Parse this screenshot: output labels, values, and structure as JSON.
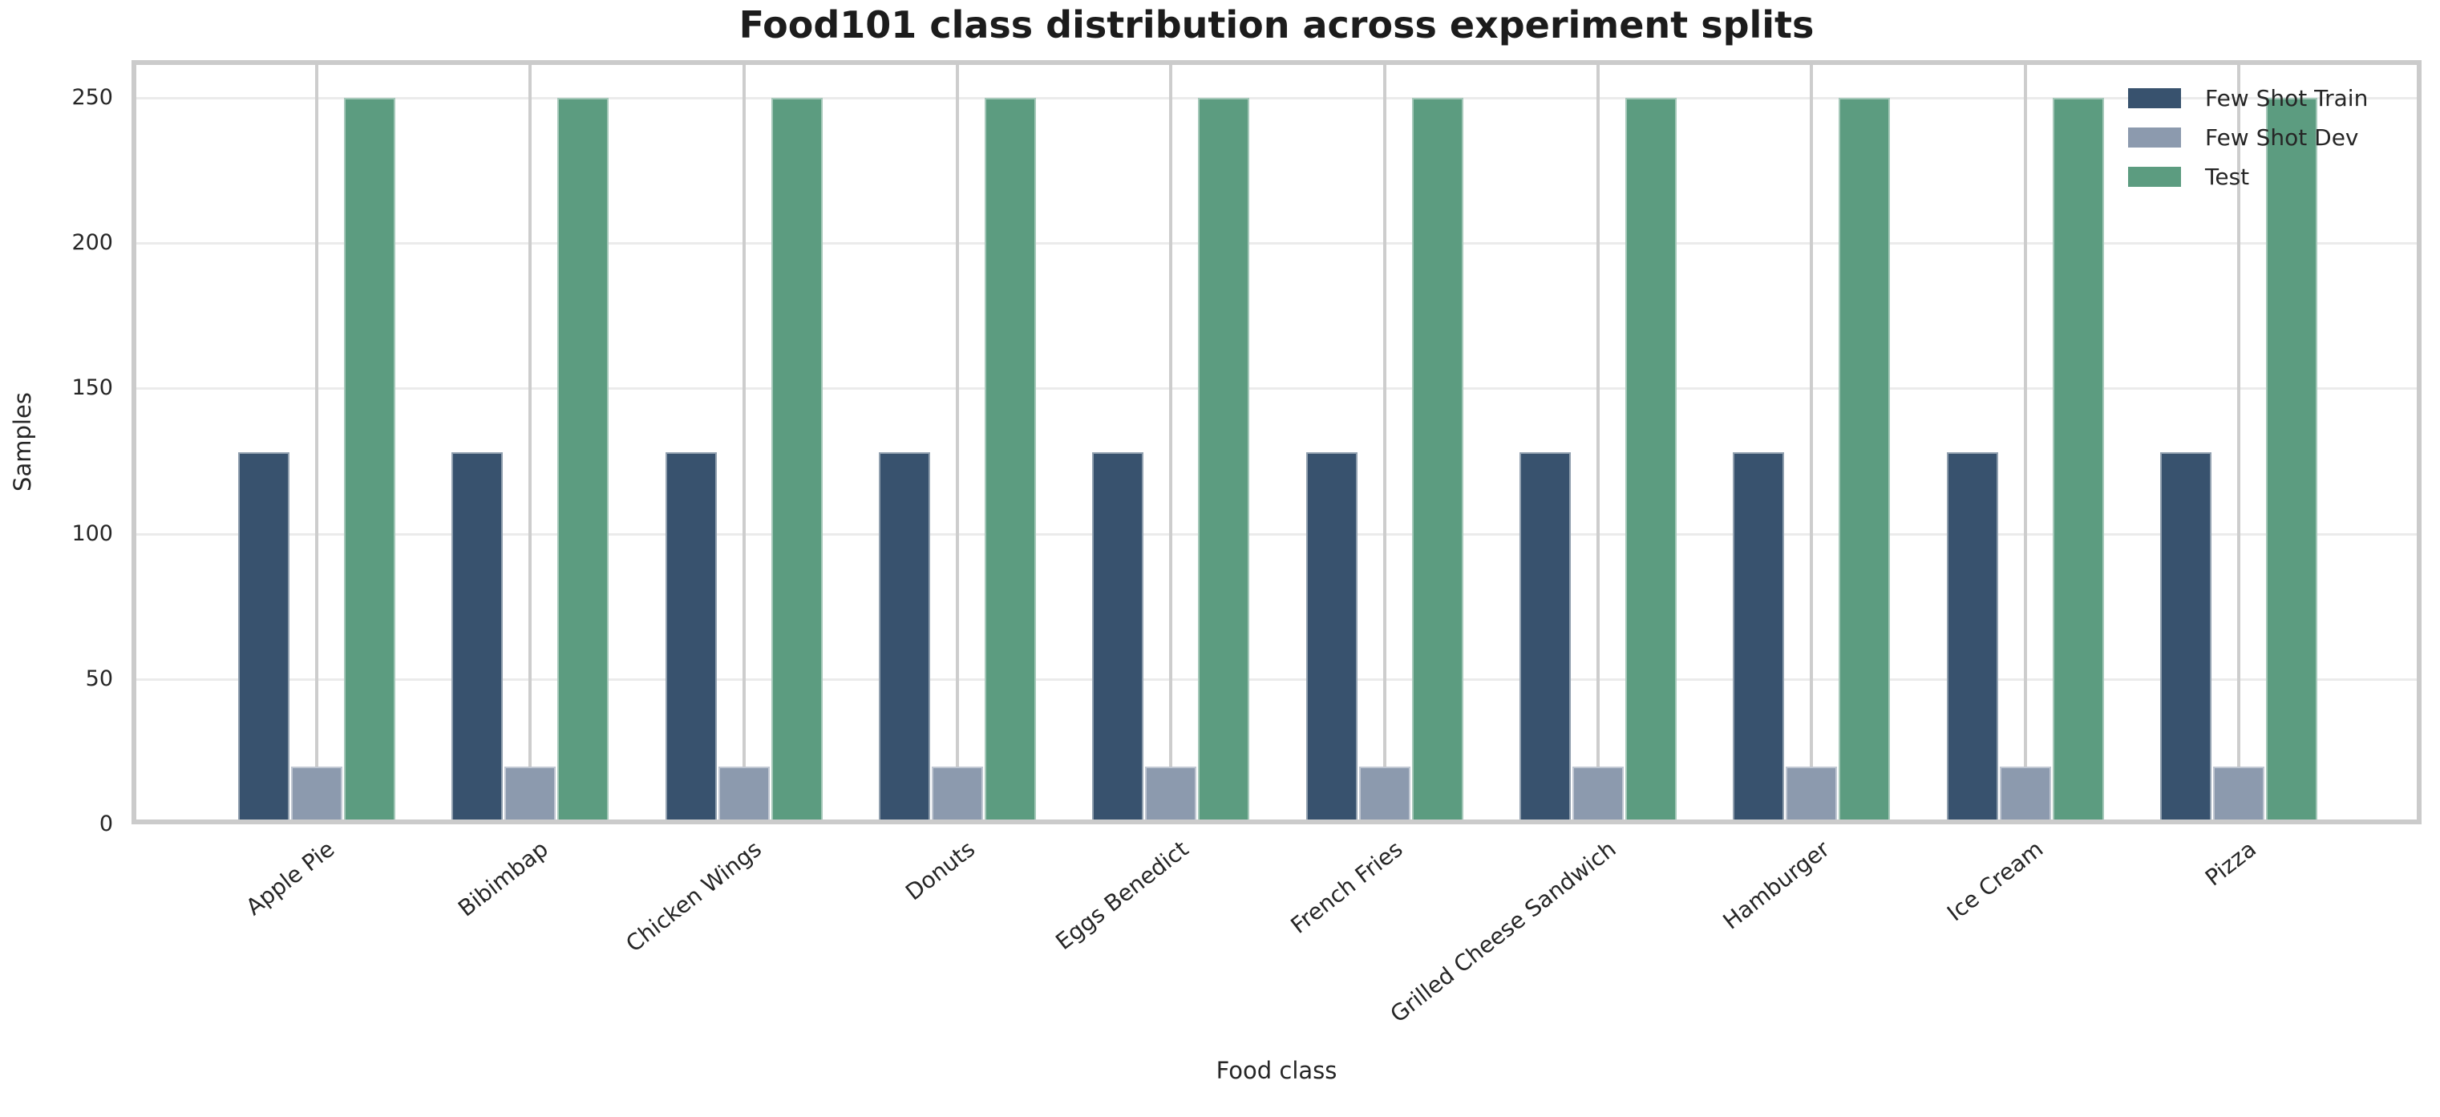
{
  "figure": {
    "title": "Food101 class distribution across experiment splits"
  },
  "chart_data": {
    "type": "bar",
    "title": "Food101 class distribution across experiment splits",
    "xlabel": "Food class",
    "ylabel": "Samples",
    "categories": [
      "Apple Pie",
      "Bibimbap",
      "Chicken Wings",
      "Donuts",
      "Eggs Benedict",
      "French Fries",
      "Grilled Cheese Sandwich",
      "Hamburger",
      "Ice Cream",
      "Pizza"
    ],
    "series": [
      {
        "name": "Few Shot Train",
        "color": "#38526E",
        "values": [
          128,
          128,
          128,
          128,
          128,
          128,
          128,
          128,
          128,
          128
        ]
      },
      {
        "name": "Few Shot Dev",
        "color": "#8C9AAE",
        "values": [
          20,
          20,
          20,
          20,
          20,
          20,
          20,
          20,
          20,
          20
        ]
      },
      {
        "name": "Test",
        "color": "#5C9C80",
        "values": [
          250,
          250,
          250,
          250,
          250,
          250,
          250,
          250,
          250,
          250
        ]
      }
    ],
    "yticks": [
      0,
      50,
      100,
      150,
      200,
      250
    ],
    "ylim": [
      0,
      263
    ],
    "grid": true,
    "grid_axis": "both",
    "legend_position": "upper right",
    "background": "#ffffff",
    "frame_color": "#cbcbcb",
    "text_color": "#262626"
  }
}
